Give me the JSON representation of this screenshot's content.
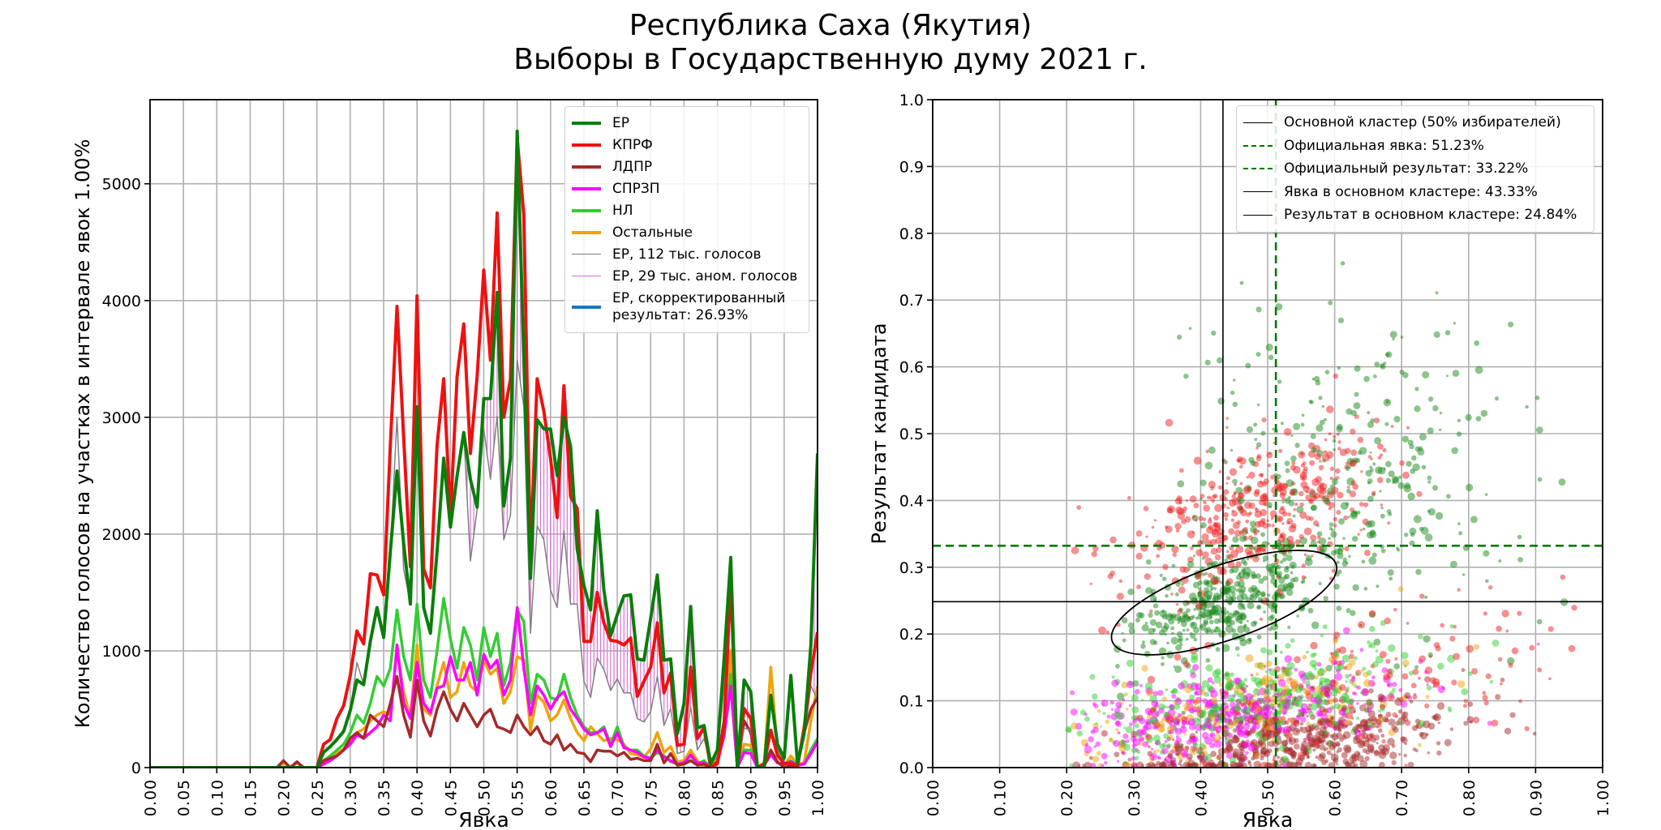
{
  "title": {
    "line1": "Республика Саха (Якутия)",
    "line2": "Выборы в Государственную думу 2021 г."
  },
  "chart_data": [
    {
      "type": "line",
      "xlabel": "Явка",
      "ylabel": "Количество голосов на участках в интервале явок 1.00%",
      "xlim": [
        0,
        1
      ],
      "ylim": [
        0,
        5720
      ],
      "xticks": [
        "0.00",
        "0.05",
        "0.10",
        "0.15",
        "0.20",
        "0.25",
        "0.30",
        "0.35",
        "0.40",
        "0.45",
        "0.50",
        "0.55",
        "0.60",
        "0.65",
        "0.70",
        "0.75",
        "0.80",
        "0.85",
        "0.90",
        "0.95",
        "1.00"
      ],
      "yticks": [
        "0",
        "1000",
        "2000",
        "3000",
        "4000",
        "5000"
      ],
      "grid": true,
      "legend_position": "top-right",
      "x_start": 0.0,
      "x_step": 0.01,
      "series": [
        {
          "name": "ЕР",
          "color": "#0a7d0a",
          "width": 4,
          "values": [
            0,
            0,
            0,
            0,
            0,
            0,
            0,
            0,
            0,
            0,
            0,
            0,
            0,
            0,
            0,
            0,
            0,
            0,
            0,
            0,
            0,
            0,
            0,
            0,
            0,
            0,
            130,
            180,
            240,
            310,
            490,
            750,
            710,
            1080,
            1370,
            1115,
            1850,
            2540,
            1920,
            1400,
            3090,
            1370,
            1150,
            1850,
            2650,
            2060,
            2500,
            2870,
            2470,
            2230,
            3160,
            3160,
            4070,
            2240,
            2650,
            5450,
            3500,
            1620,
            2980,
            2900,
            2900,
            2500,
            3000,
            2750,
            1870,
            1560,
            1350,
            2200,
            1520,
            1130,
            1310,
            1470,
            1480,
            930,
            920,
            1280,
            1650,
            920,
            930,
            290,
            550,
            1380,
            340,
            360,
            35,
            150,
            930,
            1800,
            0,
            750,
            650,
            0,
            10,
            620,
            200,
            80,
            790,
            35,
            290,
            1050,
            2690
          ]
        },
        {
          "name": "КПРФ",
          "color": "#ee1111",
          "width": 4,
          "values": [
            0,
            0,
            0,
            0,
            0,
            0,
            0,
            0,
            0,
            0,
            0,
            0,
            0,
            0,
            0,
            0,
            0,
            0,
            0,
            0,
            0,
            0,
            0,
            0,
            0,
            0,
            200,
            240,
            420,
            530,
            790,
            1170,
            1060,
            1660,
            1650,
            1480,
            2760,
            3950,
            2830,
            1720,
            4040,
            1700,
            1540,
            2760,
            3330,
            2140,
            3350,
            3800,
            2690,
            3350,
            4260,
            3490,
            4750,
            3000,
            3330,
            5390,
            4730,
            1810,
            3330,
            3050,
            2650,
            2140,
            3270,
            2320,
            2220,
            1080,
            1080,
            1500,
            1240,
            1090,
            1080,
            1050,
            1110,
            610,
            740,
            860,
            1240,
            640,
            810,
            190,
            200,
            860,
            250,
            340,
            0,
            35,
            340,
            1610,
            0,
            505,
            420,
            0,
            35,
            320,
            105,
            35,
            35,
            10,
            340,
            810,
            1160
          ]
        },
        {
          "name": "ЛДПР",
          "color": "#a52a2a",
          "width": 3.5,
          "values": [
            0,
            0,
            0,
            0,
            0,
            0,
            0,
            0,
            0,
            0,
            0,
            0,
            0,
            0,
            0,
            0,
            0,
            0,
            0,
            0,
            60,
            0,
            50,
            0,
            0,
            0,
            60,
            80,
            100,
            150,
            250,
            300,
            250,
            450,
            400,
            350,
            550,
            780,
            450,
            260,
            750,
            400,
            270,
            500,
            650,
            500,
            400,
            550,
            450,
            350,
            450,
            500,
            350,
            330,
            300,
            450,
            350,
            280,
            350,
            230,
            200,
            280,
            150,
            200,
            130,
            120,
            50,
            150,
            140,
            140,
            100,
            130,
            70,
            80,
            60,
            60,
            200,
            40,
            120,
            20,
            30,
            60,
            20,
            30,
            0,
            50,
            400,
            1600,
            0,
            400,
            300,
            0,
            10,
            150,
            50,
            0,
            20,
            10,
            300,
            500,
            600
          ]
        },
        {
          "name": "СПРЗП",
          "color": "#ff00ff",
          "width": 3.5,
          "values": [
            0,
            0,
            0,
            0,
            0,
            0,
            0,
            0,
            0,
            0,
            0,
            0,
            0,
            0,
            0,
            0,
            0,
            0,
            0,
            0,
            0,
            0,
            0,
            0,
            0,
            0,
            30,
            60,
            100,
            150,
            200,
            280,
            250,
            300,
            350,
            450,
            400,
            1050,
            550,
            420,
            900,
            550,
            470,
            680,
            700,
            950,
            750,
            750,
            900,
            620,
            970,
            850,
            920,
            620,
            750,
            1370,
            850,
            450,
            700,
            620,
            500,
            600,
            650,
            500,
            420,
            330,
            280,
            300,
            330,
            180,
            300,
            170,
            150,
            130,
            90,
            80,
            150,
            90,
            60,
            30,
            40,
            110,
            40,
            40,
            0,
            40,
            280,
            700,
            0,
            130,
            120,
            0,
            20,
            110,
            40,
            30,
            50,
            20,
            30,
            120,
            220
          ]
        },
        {
          "name": "НЛ",
          "color": "#32cd32",
          "width": 3.5,
          "values": [
            0,
            0,
            0,
            0,
            0,
            0,
            0,
            0,
            0,
            0,
            0,
            0,
            0,
            0,
            0,
            0,
            0,
            0,
            0,
            0,
            0,
            0,
            0,
            0,
            0,
            0,
            60,
            100,
            150,
            200,
            300,
            450,
            380,
            550,
            780,
            700,
            850,
            1350,
            950,
            750,
            1400,
            750,
            600,
            1000,
            1450,
            1100,
            850,
            1200,
            1050,
            750,
            1200,
            950,
            1150,
            700,
            900,
            1350,
            1250,
            550,
            800,
            750,
            600,
            580,
            800,
            600,
            450,
            350,
            300,
            300,
            350,
            200,
            350,
            180,
            150,
            150,
            100,
            80,
            130,
            100,
            50,
            30,
            40,
            100,
            30,
            60,
            0,
            50,
            300,
            800,
            0,
            150,
            150,
            0,
            20,
            130,
            40,
            30,
            60,
            20,
            30,
            150,
            250
          ]
        },
        {
          "name": "Остальные",
          "color": "#f0a30a",
          "width": 3.5,
          "values": [
            0,
            0,
            0,
            0,
            0,
            0,
            0,
            0,
            0,
            0,
            0,
            0,
            0,
            0,
            0,
            0,
            0,
            0,
            0,
            0,
            40,
            0,
            40,
            0,
            0,
            0,
            40,
            80,
            120,
            160,
            220,
            300,
            330,
            400,
            450,
            480,
            450,
            1000,
            650,
            430,
            1050,
            500,
            450,
            700,
            900,
            600,
            650,
            900,
            700,
            650,
            920,
            800,
            850,
            550,
            650,
            950,
            920,
            320,
            620,
            560,
            400,
            450,
            580,
            420,
            300,
            230,
            350,
            290,
            230,
            250,
            240,
            200,
            120,
            110,
            90,
            160,
            300,
            130,
            180,
            50,
            60,
            150,
            60,
            0,
            30,
            80,
            260,
            1000,
            0,
            200,
            190,
            0,
            20,
            860,
            150,
            20,
            100,
            30,
            40,
            400,
            700
          ]
        },
        {
          "name": "ЕР, 112 тыс. голосов",
          "color": "#808080",
          "width": 1.5,
          "values": [
            0,
            0,
            0,
            0,
            0,
            0,
            0,
            0,
            0,
            0,
            0,
            0,
            0,
            0,
            0,
            0,
            0,
            0,
            0,
            0,
            0,
            0,
            0,
            0,
            0,
            0,
            130,
            180,
            240,
            310,
            490,
            900,
            710,
            1080,
            1380,
            1115,
            1850,
            3000,
            1700,
            1400,
            3050,
            1370,
            1150,
            1850,
            2650,
            2060,
            2500,
            2870,
            1770,
            2210,
            2900,
            2470,
            3010,
            1950,
            2160,
            3490,
            3090,
            1150,
            2070,
            1950,
            1520,
            1370,
            2030,
            1400,
            1400,
            740,
            600,
            940,
            840,
            660,
            760,
            640,
            640,
            420,
            390,
            480,
            780,
            360,
            505,
            120,
            140,
            520,
            150,
            250,
            20,
            100,
            700,
            1600,
            0,
            340,
            320,
            0,
            10,
            620,
            150,
            60,
            690,
            30,
            250,
            700,
            580
          ]
        },
        {
          "name": "ЕР, 29 тыс. аном. голосов",
          "color": "#da70d6",
          "width": 1.2,
          "values": []
        },
        {
          "name": "ЕР, скорректированный\nрезультат: 26.93%",
          "color": "#1f77b4",
          "width": 3,
          "values": []
        }
      ]
    },
    {
      "type": "scatter",
      "xlabel": "Явка",
      "ylabel": "Результат кандидата",
      "xlim": [
        0,
        1
      ],
      "ylim": [
        0,
        1
      ],
      "xticks": [
        "0.00",
        "0.10",
        "0.20",
        "0.30",
        "0.40",
        "0.50",
        "0.60",
        "0.70",
        "0.80",
        "0.90",
        "1.00"
      ],
      "yticks": [
        "0.0",
        "0.1",
        "0.2",
        "0.3",
        "0.4",
        "0.5",
        "0.6",
        "0.7",
        "0.8",
        "0.9",
        "1.0"
      ],
      "grid": true,
      "legend_position": "top-right",
      "point_clouds": [
        {
          "party": "ЕР",
          "color": "#1a8a1a",
          "center": [
            0.43,
            0.25
          ],
          "spread": [
            0.07,
            0.04
          ],
          "count": 380
        },
        {
          "party": "ЕР",
          "color": "#1a8a1a",
          "center": [
            0.62,
            0.42
          ],
          "spread": [
            0.12,
            0.12
          ],
          "count": 320
        },
        {
          "party": "КПРФ",
          "color": "#ee2222",
          "center": [
            0.48,
            0.38
          ],
          "spread": [
            0.1,
            0.06
          ],
          "count": 420
        },
        {
          "party": "КПРФ",
          "color": "#ee2222",
          "center": [
            0.62,
            0.12
          ],
          "spread": [
            0.16,
            0.06
          ],
          "count": 160
        },
        {
          "party": "ЛДПР",
          "color": "#a52a2a",
          "center": [
            0.55,
            0.04
          ],
          "spread": [
            0.12,
            0.03
          ],
          "count": 520
        },
        {
          "party": "СПРЗП",
          "color": "#ff00ff",
          "center": [
            0.45,
            0.08
          ],
          "spread": [
            0.12,
            0.035
          ],
          "count": 420
        },
        {
          "party": "НЛ",
          "color": "#32cd32",
          "center": [
            0.48,
            0.1
          ],
          "spread": [
            0.13,
            0.04
          ],
          "count": 380
        },
        {
          "party": "Остальные",
          "color": "#f0a30a",
          "center": [
            0.45,
            0.08
          ],
          "spread": [
            0.13,
            0.04
          ],
          "count": 200
        }
      ],
      "cluster_ellipse": {
        "center": [
          0.435,
          0.247
        ],
        "color": "#000000"
      },
      "lines": [
        {
          "label": "Основной кластер (50% избирателей)",
          "kind": "ellipse",
          "color": "#000000",
          "style": "solid"
        },
        {
          "label": "Официальная явка: 51.23%",
          "kind": "vline",
          "value": 0.5123,
          "color": "#007a00",
          "style": "dashed"
        },
        {
          "label": "Официальный результат: 33.22%",
          "kind": "hline",
          "value": 0.3322,
          "color": "#007a00",
          "style": "dashed"
        },
        {
          "label": "Явка в основном кластере: 43.33%",
          "kind": "vline",
          "value": 0.4333,
          "color": "#000000",
          "style": "solid"
        },
        {
          "label": "Результат в основном кластере: 24.84%",
          "kind": "hline",
          "value": 0.2484,
          "color": "#000000",
          "style": "solid"
        }
      ]
    }
  ]
}
